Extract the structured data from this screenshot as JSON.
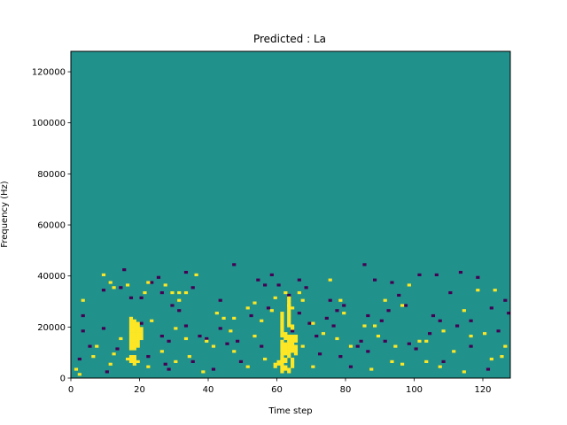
{
  "chart_data": {
    "type": "heatmap",
    "title": "Predicted : La",
    "xlabel": "Time step",
    "ylabel": "Frequency (Hz)",
    "xlim": [
      0,
      128
    ],
    "ylim": [
      0,
      128000
    ],
    "x_ticks": [
      0,
      20,
      40,
      60,
      80,
      100,
      120
    ],
    "y_ticks": [
      0,
      20000,
      40000,
      60000,
      80000,
      100000,
      120000
    ],
    "x_tick_labels": [
      "0",
      "20",
      "40",
      "60",
      "80",
      "100",
      "120"
    ],
    "y_tick_labels": [
      "0",
      "20000",
      "40000",
      "60000",
      "80000",
      "100000",
      "120000"
    ],
    "value_levels": [
      0,
      1,
      2
    ],
    "background_level": 1,
    "colors": {
      "0": "#440154",
      "1": "#21918c",
      "2": "#fde725"
    },
    "cells": [
      [
        2,
        7,
        0
      ],
      [
        3,
        18,
        0
      ],
      [
        9,
        19,
        0
      ],
      [
        13,
        11,
        0
      ],
      [
        26,
        16,
        0
      ],
      [
        31,
        26,
        0
      ],
      [
        33,
        41,
        0
      ],
      [
        48,
        14,
        0
      ],
      [
        56,
        36,
        0
      ],
      [
        63,
        32,
        0
      ],
      [
        77,
        26,
        0
      ],
      [
        92,
        26,
        0
      ],
      [
        97,
        28,
        0
      ],
      [
        101,
        40,
        0
      ],
      [
        107,
        22,
        0
      ],
      [
        118,
        39,
        0
      ],
      [
        9,
        34,
        0
      ],
      [
        20,
        21,
        0
      ],
      [
        26,
        33,
        0
      ],
      [
        37,
        16,
        0
      ],
      [
        43,
        19,
        0
      ],
      [
        52,
        24,
        0
      ],
      [
        64,
        18,
        0
      ],
      [
        75,
        30,
        0
      ],
      [
        86,
        10,
        0
      ],
      [
        90,
        22,
        0
      ],
      [
        104,
        17,
        0
      ],
      [
        110,
        33,
        0
      ],
      [
        122,
        27,
        0
      ],
      [
        127,
        25,
        0
      ],
      [
        5,
        12,
        0
      ],
      [
        14,
        35,
        0
      ],
      [
        23,
        37,
        0
      ],
      [
        29,
        28,
        0
      ],
      [
        35,
        6,
        0
      ],
      [
        45,
        13,
        0
      ],
      [
        58,
        40,
        0
      ],
      [
        69,
        21,
        0
      ],
      [
        72,
        9,
        0
      ],
      [
        84,
        14,
        0
      ],
      [
        95,
        32,
        0
      ],
      [
        113,
        41,
        0
      ],
      [
        116,
        12,
        0
      ],
      [
        124,
        18,
        0
      ],
      [
        10,
        2,
        0
      ],
      [
        17,
        31,
        0
      ],
      [
        27,
        5,
        0
      ],
      [
        39,
        15,
        0
      ],
      [
        47,
        44,
        0
      ],
      [
        55,
        12,
        0
      ],
      [
        60,
        36,
        0
      ],
      [
        66,
        25,
        0
      ],
      [
        81,
        4,
        0
      ],
      [
        88,
        38,
        0
      ],
      [
        100,
        11,
        0
      ],
      [
        108,
        6,
        0
      ],
      [
        121,
        3,
        0
      ],
      [
        3,
        24,
        0
      ],
      [
        41,
        3,
        0
      ],
      [
        61,
        9,
        0
      ],
      [
        76,
        20,
        0
      ],
      [
        91,
        14,
        0
      ],
      [
        105,
        24,
        0
      ],
      [
        71,
        16,
        0
      ],
      [
        79,
        28,
        0
      ],
      [
        83,
        12,
        0
      ],
      [
        28,
        14,
        0
      ],
      [
        33,
        20,
        0
      ],
      [
        22,
        8,
        0
      ],
      [
        49,
        6,
        0
      ],
      [
        57,
        27,
        0
      ],
      [
        66,
        38,
        0
      ],
      [
        78,
        8,
        0
      ],
      [
        85,
        44,
        0
      ],
      [
        98,
        13,
        0
      ],
      [
        116,
        22,
        0
      ],
      [
        3,
        30,
        2
      ],
      [
        9,
        40,
        2
      ],
      [
        11,
        37,
        2
      ],
      [
        12,
        35,
        2
      ],
      [
        16,
        36,
        2
      ],
      [
        22,
        37,
        2
      ],
      [
        27,
        36,
        2
      ],
      [
        29,
        33,
        2
      ],
      [
        31,
        33,
        2
      ],
      [
        33,
        33,
        2
      ],
      [
        36,
        40,
        2
      ],
      [
        42,
        25,
        2
      ],
      [
        47,
        23,
        2
      ],
      [
        51,
        27,
        2
      ],
      [
        58,
        26,
        2
      ],
      [
        61,
        25,
        2
      ],
      [
        63,
        28,
        2
      ],
      [
        66,
        33,
        2
      ],
      [
        70,
        21,
        2
      ],
      [
        77,
        15,
        2
      ],
      [
        78,
        30,
        2
      ],
      [
        85,
        20,
        2
      ],
      [
        91,
        30,
        2
      ],
      [
        94,
        12,
        2
      ],
      [
        101,
        14,
        2
      ],
      [
        103,
        6,
        2
      ],
      [
        108,
        18,
        2
      ],
      [
        116,
        16,
        2
      ],
      [
        123,
        34,
        2
      ],
      [
        126,
        12,
        2
      ],
      [
        14,
        15,
        2
      ],
      [
        23,
        22,
        2
      ],
      [
        30,
        19,
        2
      ],
      [
        34,
        8,
        2
      ],
      [
        39,
        14,
        2
      ],
      [
        44,
        23,
        2
      ],
      [
        46,
        18,
        2
      ],
      [
        53,
        29,
        2
      ],
      [
        59,
        31,
        2
      ],
      [
        64,
        27,
        2
      ],
      [
        67,
        30,
        2
      ],
      [
        79,
        25,
        2
      ],
      [
        88,
        20,
        2
      ],
      [
        96,
        28,
        2
      ],
      [
        114,
        26,
        2
      ],
      [
        118,
        34,
        2
      ],
      [
        21,
        33,
        2
      ],
      [
        31,
        30,
        2
      ],
      [
        55,
        22,
        2
      ],
      [
        62,
        33,
        2
      ],
      [
        75,
        38,
        2
      ],
      [
        89,
        16,
        2
      ],
      [
        98,
        36,
        2
      ],
      [
        120,
        17,
        2
      ],
      [
        1,
        3,
        2
      ],
      [
        6,
        8,
        2
      ],
      [
        11,
        5,
        2
      ],
      [
        26,
        10,
        2
      ],
      [
        33,
        15,
        2
      ],
      [
        41,
        12,
        2
      ],
      [
        47,
        10,
        2
      ],
      [
        53,
        16,
        2
      ],
      [
        67,
        12,
        2
      ],
      [
        73,
        17,
        2
      ],
      [
        81,
        12,
        2
      ],
      [
        93,
        6,
        2
      ],
      [
        103,
        14,
        2
      ],
      [
        111,
        10,
        2
      ],
      [
        122,
        7,
        2
      ],
      [
        2,
        1,
        2
      ],
      [
        7,
        12,
        2
      ],
      [
        12,
        9,
        2
      ],
      [
        22,
        4,
        2
      ],
      [
        30,
        6,
        2
      ],
      [
        38,
        2,
        2
      ],
      [
        51,
        4,
        2
      ],
      [
        56,
        7,
        2
      ],
      [
        70,
        4,
        2
      ],
      [
        87,
        3,
        2
      ],
      [
        96,
        5,
        2
      ],
      [
        107,
        4,
        2
      ],
      [
        114,
        2,
        2
      ],
      [
        125,
        8,
        2
      ],
      [
        17,
        11,
        2
      ],
      [
        17,
        12,
        2
      ],
      [
        17,
        13,
        2
      ],
      [
        17,
        14,
        2
      ],
      [
        17,
        15,
        2
      ],
      [
        17,
        16,
        2
      ],
      [
        17,
        17,
        2
      ],
      [
        17,
        18,
        2
      ],
      [
        17,
        19,
        2
      ],
      [
        17,
        20,
        2
      ],
      [
        17,
        21,
        2
      ],
      [
        17,
        22,
        2
      ],
      [
        17,
        23,
        2
      ],
      [
        18,
        11,
        2
      ],
      [
        18,
        12,
        2
      ],
      [
        18,
        13,
        2
      ],
      [
        18,
        14,
        2
      ],
      [
        18,
        15,
        2
      ],
      [
        18,
        16,
        2
      ],
      [
        18,
        17,
        2
      ],
      [
        18,
        18,
        2
      ],
      [
        18,
        19,
        2
      ],
      [
        18,
        20,
        2
      ],
      [
        18,
        21,
        2
      ],
      [
        18,
        22,
        2
      ],
      [
        19,
        12,
        2
      ],
      [
        19,
        13,
        2
      ],
      [
        19,
        14,
        2
      ],
      [
        19,
        15,
        2
      ],
      [
        19,
        16,
        2
      ],
      [
        19,
        17,
        2
      ],
      [
        19,
        18,
        2
      ],
      [
        19,
        19,
        2
      ],
      [
        19,
        20,
        2
      ],
      [
        19,
        21,
        2
      ],
      [
        20,
        15,
        2
      ],
      [
        20,
        16,
        2
      ],
      [
        20,
        17,
        2
      ],
      [
        20,
        18,
        2
      ],
      [
        20,
        19,
        2
      ],
      [
        18,
        5,
        2
      ],
      [
        18,
        6,
        2
      ],
      [
        18,
        7,
        2
      ],
      [
        18,
        8,
        2
      ],
      [
        17,
        6,
        2
      ],
      [
        17,
        7,
        2
      ],
      [
        17,
        8,
        2
      ],
      [
        16,
        7,
        2
      ],
      [
        19,
        6,
        2
      ],
      [
        61,
        2,
        2
      ],
      [
        61,
        3,
        2
      ],
      [
        61,
        4,
        2
      ],
      [
        61,
        5,
        2
      ],
      [
        61,
        6,
        2
      ],
      [
        61,
        7,
        2
      ],
      [
        61,
        8,
        2
      ],
      [
        61,
        9,
        2
      ],
      [
        61,
        10,
        2
      ],
      [
        61,
        11,
        2
      ],
      [
        61,
        12,
        2
      ],
      [
        61,
        13,
        2
      ],
      [
        61,
        14,
        2
      ],
      [
        61,
        16,
        2
      ],
      [
        61,
        17,
        2
      ],
      [
        61,
        18,
        2
      ],
      [
        61,
        19,
        2
      ],
      [
        61,
        20,
        2
      ],
      [
        61,
        21,
        2
      ],
      [
        61,
        22,
        2
      ],
      [
        61,
        23,
        2
      ],
      [
        61,
        24,
        2
      ],
      [
        62,
        3,
        2
      ],
      [
        62,
        4,
        2
      ],
      [
        62,
        6,
        2
      ],
      [
        62,
        7,
        2
      ],
      [
        62,
        9,
        2
      ],
      [
        62,
        10,
        2
      ],
      [
        62,
        11,
        2
      ],
      [
        62,
        12,
        2
      ],
      [
        62,
        13,
        2
      ],
      [
        62,
        15,
        2
      ],
      [
        62,
        16,
        2
      ],
      [
        62,
        17,
        2
      ],
      [
        63,
        2,
        2
      ],
      [
        63,
        3,
        2
      ],
      [
        63,
        8,
        2
      ],
      [
        63,
        9,
        2
      ],
      [
        63,
        10,
        2
      ],
      [
        63,
        11,
        2
      ],
      [
        63,
        12,
        2
      ],
      [
        63,
        13,
        2
      ],
      [
        63,
        14,
        2
      ],
      [
        63,
        15,
        2
      ],
      [
        63,
        16,
        2
      ],
      [
        63,
        20,
        2
      ],
      [
        63,
        21,
        2
      ],
      [
        63,
        22,
        2
      ],
      [
        63,
        23,
        2
      ],
      [
        63,
        24,
        2
      ],
      [
        63,
        25,
        2
      ],
      [
        63,
        26,
        2
      ],
      [
        63,
        27,
        2
      ],
      [
        63,
        28,
        2
      ],
      [
        63,
        29,
        2
      ],
      [
        63,
        30,
        2
      ],
      [
        63,
        31,
        2
      ],
      [
        64,
        4,
        2
      ],
      [
        64,
        5,
        2
      ],
      [
        64,
        6,
        2
      ],
      [
        64,
        7,
        2
      ],
      [
        64,
        10,
        2
      ],
      [
        64,
        11,
        2
      ],
      [
        64,
        12,
        2
      ],
      [
        64,
        13,
        2
      ],
      [
        64,
        14,
        2
      ],
      [
        64,
        15,
        2
      ],
      [
        64,
        16,
        2
      ],
      [
        64,
        19,
        2
      ],
      [
        64,
        20,
        2
      ],
      [
        65,
        9,
        2
      ],
      [
        65,
        10,
        2
      ],
      [
        65,
        11,
        2
      ],
      [
        65,
        12,
        2
      ],
      [
        65,
        14,
        2
      ],
      [
        65,
        15,
        2
      ],
      [
        65,
        16,
        2
      ],
      [
        60,
        5,
        2
      ],
      [
        60,
        6,
        2
      ],
      [
        59,
        4,
        2
      ],
      [
        59,
        5,
        2
      ],
      [
        28,
        3,
        0
      ],
      [
        20,
        31,
        0
      ],
      [
        15,
        42,
        0
      ],
      [
        25,
        39,
        0
      ],
      [
        35,
        35,
        0
      ],
      [
        43,
        30,
        0
      ],
      [
        54,
        38,
        0
      ],
      [
        68,
        35,
        0
      ],
      [
        74,
        23,
        0
      ],
      [
        86,
        24,
        0
      ],
      [
        93,
        37,
        0
      ],
      [
        106,
        40,
        0
      ],
      [
        112,
        20,
        0
      ],
      [
        126,
        30,
        0
      ]
    ]
  }
}
